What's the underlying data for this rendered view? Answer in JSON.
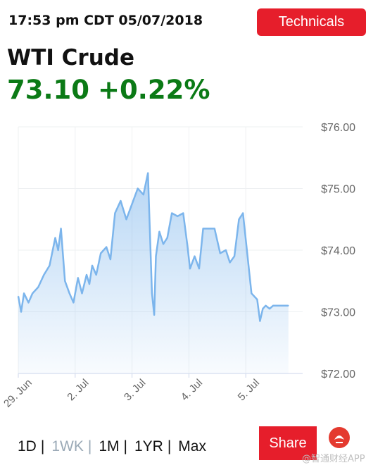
{
  "header": {
    "timestamp": "17:53 pm CDT 05/07/2018",
    "technicals_label": "Technicals"
  },
  "quote": {
    "name": "WTI Crude",
    "price": "73.10",
    "change": "+0.22%",
    "color": "#0b7a16"
  },
  "chart_data": {
    "type": "area",
    "title": "",
    "xlabel": "",
    "ylabel": "",
    "ylim": [
      72.0,
      76.0
    ],
    "xlim": [
      0.0,
      5.0
    ],
    "y_ticks": [
      "$76.00",
      "$75.00",
      "$74.00",
      "$73.00",
      "$72.00"
    ],
    "y_tick_values": [
      76,
      75,
      74,
      73,
      72
    ],
    "x_ticks": [
      "29. Jun",
      "2. Jul",
      "3. Jul",
      "4. Jul",
      "5. Jul"
    ],
    "x_tick_values": [
      0.0,
      1.0,
      2.0,
      3.0,
      4.0
    ],
    "grid": true,
    "line_color": "#7cb5ec",
    "series": [
      {
        "x": [
          0.0,
          0.05,
          0.1,
          0.18,
          0.25,
          0.35,
          0.45,
          0.55,
          0.65,
          0.7,
          0.75,
          0.82,
          0.9,
          0.97,
          1.05,
          1.12,
          1.2,
          1.25,
          1.3,
          1.37,
          1.45,
          1.55,
          1.62,
          1.7,
          1.8,
          1.9,
          2.0,
          2.1,
          2.2,
          2.28,
          2.35,
          2.39,
          2.42,
          2.48,
          2.55,
          2.62,
          2.7,
          2.8,
          2.9,
          2.97,
          3.02,
          3.1,
          3.18,
          3.25,
          3.35,
          3.45,
          3.55,
          3.65,
          3.72,
          3.8,
          3.88,
          3.95,
          4.02,
          4.1,
          4.2,
          4.25,
          4.3,
          4.35,
          4.42,
          4.48,
          4.55,
          4.62,
          4.7,
          4.75
        ],
        "values": [
          73.25,
          73.0,
          73.3,
          73.15,
          73.3,
          73.4,
          73.6,
          73.75,
          74.2,
          74.0,
          74.35,
          73.5,
          73.3,
          73.15,
          73.55,
          73.3,
          73.6,
          73.45,
          73.75,
          73.6,
          73.95,
          74.05,
          73.85,
          74.6,
          74.8,
          74.5,
          74.75,
          75.0,
          74.9,
          75.25,
          73.3,
          72.95,
          73.9,
          74.3,
          74.1,
          74.2,
          74.6,
          74.55,
          74.6,
          74.1,
          73.7,
          73.9,
          73.7,
          74.35,
          74.35,
          74.35,
          73.95,
          74.0,
          73.8,
          73.9,
          74.5,
          74.6,
          74.0,
          73.3,
          73.2,
          72.85,
          73.05,
          73.1,
          73.05,
          73.1,
          73.1,
          73.1,
          73.1,
          73.1
        ]
      }
    ]
  },
  "ranges": {
    "options": [
      "1D",
      "1WK",
      "1M",
      "1YR",
      "Max"
    ],
    "active": "1WK"
  },
  "share_label": "Share",
  "watermark": "@智通财经APP"
}
